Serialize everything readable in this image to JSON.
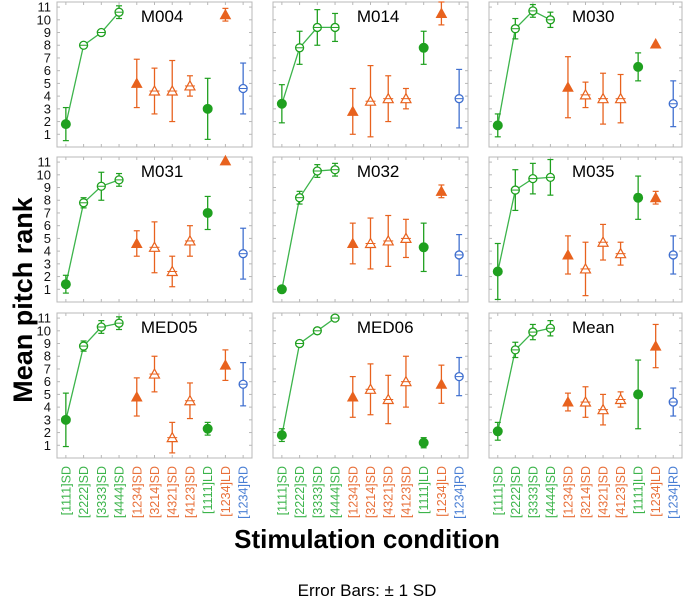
{
  "chart_data": {
    "type": "scatter",
    "title": "",
    "xlabel": "Stimulation condition",
    "ylabel": "Mean pitch rank",
    "footnote": "Error Bars: ± 1 SD",
    "ylim": [
      0,
      11.4
    ],
    "yticks": [
      1,
      2,
      3,
      4,
      5,
      6,
      7,
      8,
      9,
      10,
      11
    ],
    "grid": false,
    "layout": "3x3 panels",
    "categories": [
      "[1111]SD",
      "[2222]SD",
      "[3333]SD",
      "[4444]SD",
      "[1234]SD",
      "[3214]SD",
      "[4321]SD",
      "[4123]SD",
      "[1111]LD",
      "[1234]LD",
      "[1234]RD"
    ],
    "category_colors": [
      "#3cb44b",
      "#3cb44b",
      "#3cb44b",
      "#3cb44b",
      "#e8703a",
      "#e8703a",
      "#e8703a",
      "#e8703a",
      "#3cb44b",
      "#e8703a",
      "#4a7fd4"
    ],
    "marker_styles": [
      "filled-circle",
      "open-circle",
      "open-circle",
      "open-circle",
      "filled-triangle",
      "open-triangle",
      "open-triangle",
      "open-triangle",
      "filled-circle",
      "filled-triangle",
      "open-circle"
    ],
    "colors": {
      "green": "#1fa01f",
      "green_line": "#3cb44b",
      "orange": "#e8621e",
      "blue": "#3f6fcf"
    },
    "panels": [
      {
        "name": "M004",
        "means": [
          1.8,
          8.0,
          9.0,
          10.6,
          5.0,
          4.4,
          4.4,
          4.8,
          3.0,
          10.4,
          4.6
        ],
        "sd": [
          1.3,
          0,
          0,
          0.5,
          1.9,
          1.8,
          2.4,
          0.8,
          2.4,
          0.5,
          2.0
        ]
      },
      {
        "name": "M014",
        "means": [
          3.4,
          7.8,
          9.4,
          9.4,
          2.8,
          3.6,
          3.8,
          3.8,
          7.8,
          10.5,
          3.8
        ],
        "sd": [
          1.5,
          1.3,
          1.4,
          1.1,
          1.8,
          2.8,
          1.8,
          0.8,
          1.3,
          0.9,
          2.3
        ]
      },
      {
        "name": "M030",
        "means": [
          1.7,
          9.3,
          10.7,
          10.0,
          4.7,
          4.1,
          3.8,
          3.8,
          6.3,
          8.1,
          3.4
        ],
        "sd": [
          0.9,
          0.8,
          0.5,
          0.6,
          2.4,
          1.0,
          2.0,
          1.9,
          1.1,
          0,
          1.8
        ]
      },
      {
        "name": "M031",
        "means": [
          1.4,
          7.8,
          9.1,
          9.6,
          4.6,
          4.3,
          2.4,
          4.8,
          7.0,
          11.1,
          3.8
        ],
        "sd": [
          0.7,
          0.4,
          1.1,
          0.5,
          1.0,
          2.0,
          1.2,
          1.2,
          1.3,
          0,
          2.0
        ]
      },
      {
        "name": "M032",
        "means": [
          1.0,
          8.2,
          10.3,
          10.4,
          4.6,
          4.6,
          4.8,
          5.0,
          4.3,
          8.7,
          3.7
        ],
        "sd": [
          0,
          0.5,
          0.5,
          0.5,
          1.6,
          2.0,
          2.0,
          1.5,
          1.9,
          0.5,
          1.6
        ]
      },
      {
        "name": "M035",
        "means": [
          2.4,
          8.8,
          9.7,
          9.8,
          3.7,
          2.6,
          4.7,
          3.8,
          8.2,
          8.2,
          3.7
        ],
        "sd": [
          2.2,
          1.6,
          1.2,
          1.4,
          1.5,
          2.1,
          1.4,
          0.9,
          1.7,
          0.5,
          1.5
        ]
      },
      {
        "name": "MED05",
        "means": [
          3.0,
          8.8,
          10.3,
          10.6,
          4.8,
          6.6,
          1.6,
          4.5,
          2.3,
          7.3,
          5.8
        ],
        "sd": [
          2.1,
          0.4,
          0.5,
          0.5,
          1.5,
          1.4,
          1.2,
          1.4,
          0.5,
          1.2,
          1.7
        ]
      },
      {
        "name": "MED06",
        "means": [
          1.8,
          9.0,
          10.0,
          11.0,
          4.8,
          5.4,
          4.6,
          6.0,
          1.2,
          5.8,
          6.4
        ],
        "sd": [
          0.5,
          0,
          0,
          0,
          1.6,
          2.0,
          1.9,
          2.0,
          0.4,
          1.5,
          1.5
        ]
      },
      {
        "name": "Mean",
        "means": [
          2.1,
          8.5,
          9.9,
          10.2,
          4.4,
          4.4,
          3.8,
          4.6,
          5.0,
          8.8,
          4.4
        ],
        "sd": [
          0.7,
          0.6,
          0.6,
          0.6,
          0.7,
          1.2,
          1.2,
          0.6,
          2.7,
          1.7,
          1.1
        ]
      }
    ]
  }
}
